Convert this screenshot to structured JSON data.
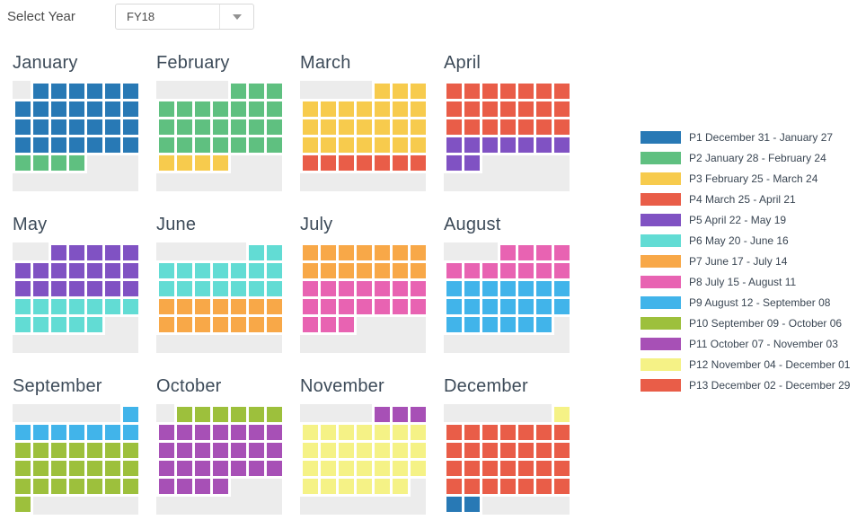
{
  "controls": {
    "select_year_label": "Select Year",
    "year_value": "FY18"
  },
  "chart_data": {
    "type": "heatmap",
    "subtype": "fiscal-period-calendar",
    "fiscal_year": "FY18",
    "week_columns": 7,
    "empty_color": "#ececec",
    "gap_color": "#ffffff",
    "periods": [
      {
        "id": "P1",
        "label": "P1 December 31 - January 27",
        "color": "#2879b5"
      },
      {
        "id": "P2",
        "label": "P2 January 28 - February 24",
        "color": "#5fc080"
      },
      {
        "id": "P3",
        "label": "P3 February 25 - March 24",
        "color": "#f7cb4d"
      },
      {
        "id": "P4",
        "label": "P4 March 25 - April 21",
        "color": "#e95d48"
      },
      {
        "id": "P5",
        "label": "P5 April 22 - May 19",
        "color": "#8052c3"
      },
      {
        "id": "P6",
        "label": "P6 May 20 - June 16",
        "color": "#62dcd4"
      },
      {
        "id": "P7",
        "label": "P7 June 17 - July 14",
        "color": "#f8a848"
      },
      {
        "id": "P8",
        "label": "P8 July 15 - August 11",
        "color": "#e863b2"
      },
      {
        "id": "P9",
        "label": "P9 August 12 - September 08",
        "color": "#41b4ea"
      },
      {
        "id": "P10",
        "label": "P10 September 09 - October 06",
        "color": "#9dc03c"
      },
      {
        "id": "P11",
        "label": "P11 October 07 - November 03",
        "color": "#a750b6"
      },
      {
        "id": "P12",
        "label": "P12 November 04 - December 01",
        "color": "#f5f286"
      },
      {
        "id": "P13",
        "label": "P13 December 02 - December 29",
        "color": "#e95d48"
      }
    ],
    "months": [
      {
        "name": "January",
        "weeks": [
          [
            0,
            1,
            1,
            1,
            1,
            1,
            1
          ],
          [
            1,
            1,
            1,
            1,
            1,
            1,
            1
          ],
          [
            1,
            1,
            1,
            1,
            1,
            1,
            1
          ],
          [
            1,
            1,
            1,
            1,
            1,
            1,
            1
          ],
          [
            2,
            2,
            2,
            2,
            0,
            0,
            0
          ]
        ]
      },
      {
        "name": "February",
        "weeks": [
          [
            0,
            0,
            0,
            0,
            2,
            2,
            2
          ],
          [
            2,
            2,
            2,
            2,
            2,
            2,
            2
          ],
          [
            2,
            2,
            2,
            2,
            2,
            2,
            2
          ],
          [
            2,
            2,
            2,
            2,
            2,
            2,
            2
          ],
          [
            3,
            3,
            3,
            3,
            0,
            0,
            0
          ]
        ]
      },
      {
        "name": "March",
        "weeks": [
          [
            0,
            0,
            0,
            0,
            3,
            3,
            3
          ],
          [
            3,
            3,
            3,
            3,
            3,
            3,
            3
          ],
          [
            3,
            3,
            3,
            3,
            3,
            3,
            3
          ],
          [
            3,
            3,
            3,
            3,
            3,
            3,
            3
          ],
          [
            4,
            4,
            4,
            4,
            4,
            4,
            4
          ]
        ]
      },
      {
        "name": "April",
        "weeks": [
          [
            4,
            4,
            4,
            4,
            4,
            4,
            4
          ],
          [
            4,
            4,
            4,
            4,
            4,
            4,
            4
          ],
          [
            4,
            4,
            4,
            4,
            4,
            4,
            4
          ],
          [
            5,
            5,
            5,
            5,
            5,
            5,
            5
          ],
          [
            5,
            5,
            0,
            0,
            0,
            0,
            0
          ]
        ]
      },
      {
        "name": "May",
        "weeks": [
          [
            0,
            0,
            5,
            5,
            5,
            5,
            5
          ],
          [
            5,
            5,
            5,
            5,
            5,
            5,
            5
          ],
          [
            5,
            5,
            5,
            5,
            5,
            5,
            5
          ],
          [
            6,
            6,
            6,
            6,
            6,
            6,
            6
          ],
          [
            6,
            6,
            6,
            6,
            6,
            0,
            0
          ]
        ]
      },
      {
        "name": "June",
        "weeks": [
          [
            0,
            0,
            0,
            0,
            0,
            6,
            6
          ],
          [
            6,
            6,
            6,
            6,
            6,
            6,
            6
          ],
          [
            6,
            6,
            6,
            6,
            6,
            6,
            6
          ],
          [
            7,
            7,
            7,
            7,
            7,
            7,
            7
          ],
          [
            7,
            7,
            7,
            7,
            7,
            7,
            7
          ]
        ]
      },
      {
        "name": "July",
        "weeks": [
          [
            7,
            7,
            7,
            7,
            7,
            7,
            7
          ],
          [
            7,
            7,
            7,
            7,
            7,
            7,
            7
          ],
          [
            8,
            8,
            8,
            8,
            8,
            8,
            8
          ],
          [
            8,
            8,
            8,
            8,
            8,
            8,
            8
          ],
          [
            8,
            8,
            8,
            0,
            0,
            0,
            0
          ]
        ]
      },
      {
        "name": "August",
        "weeks": [
          [
            0,
            0,
            0,
            8,
            8,
            8,
            8
          ],
          [
            8,
            8,
            8,
            8,
            8,
            8,
            8
          ],
          [
            9,
            9,
            9,
            9,
            9,
            9,
            9
          ],
          [
            9,
            9,
            9,
            9,
            9,
            9,
            9
          ],
          [
            9,
            9,
            9,
            9,
            9,
            9,
            0
          ]
        ]
      },
      {
        "name": "September",
        "weeks": [
          [
            0,
            0,
            0,
            0,
            0,
            0,
            9
          ],
          [
            9,
            9,
            9,
            9,
            9,
            9,
            9
          ],
          [
            10,
            10,
            10,
            10,
            10,
            10,
            10
          ],
          [
            10,
            10,
            10,
            10,
            10,
            10,
            10
          ],
          [
            10,
            10,
            10,
            10,
            10,
            10,
            10
          ],
          [
            10,
            0,
            0,
            0,
            0,
            0,
            0
          ]
        ]
      },
      {
        "name": "October",
        "weeks": [
          [
            0,
            10,
            10,
            10,
            10,
            10,
            10
          ],
          [
            11,
            11,
            11,
            11,
            11,
            11,
            11
          ],
          [
            11,
            11,
            11,
            11,
            11,
            11,
            11
          ],
          [
            11,
            11,
            11,
            11,
            11,
            11,
            11
          ],
          [
            11,
            11,
            11,
            11,
            0,
            0,
            0
          ]
        ]
      },
      {
        "name": "November",
        "weeks": [
          [
            0,
            0,
            0,
            0,
            11,
            11,
            11
          ],
          [
            12,
            12,
            12,
            12,
            12,
            12,
            12
          ],
          [
            12,
            12,
            12,
            12,
            12,
            12,
            12
          ],
          [
            12,
            12,
            12,
            12,
            12,
            12,
            12
          ],
          [
            12,
            12,
            12,
            12,
            12,
            12,
            0
          ]
        ]
      },
      {
        "name": "December",
        "weeks": [
          [
            0,
            0,
            0,
            0,
            0,
            0,
            12
          ],
          [
            13,
            13,
            13,
            13,
            13,
            13,
            13
          ],
          [
            13,
            13,
            13,
            13,
            13,
            13,
            13
          ],
          [
            13,
            13,
            13,
            13,
            13,
            13,
            13
          ],
          [
            13,
            13,
            13,
            13,
            13,
            13,
            13
          ],
          [
            1,
            1,
            0,
            0,
            0,
            0,
            0
          ]
        ]
      }
    ]
  }
}
